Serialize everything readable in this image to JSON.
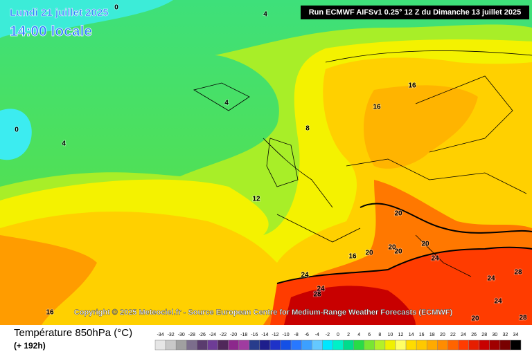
{
  "header": {
    "date": "Lundi 21 juillet 2025",
    "time": "14:00 locale",
    "run": "Run ECMWF AIFSv1 0.25° 12 Z du Dimanche 13 juillet 2025"
  },
  "copyright": "Copyright © 2025 Meteociel.fr - Source European Centre for Medium-Range Weather Forecasts (ECMWF)",
  "footer": {
    "title": "Température 850hPa (°C)",
    "lead": "(+ 192h)"
  },
  "contour_labels": [
    0,
    4,
    4,
    0,
    4,
    8,
    12,
    16,
    16,
    16,
    16,
    20,
    20,
    20,
    20,
    20,
    24,
    24,
    24,
    24,
    24,
    28,
    28,
    28,
    20
  ],
  "legend": {
    "labels": [
      -34,
      -32,
      -30,
      -28,
      -26,
      -24,
      -22,
      -20,
      -18,
      -16,
      -14,
      -12,
      -10,
      -8,
      -6,
      -4,
      -2,
      0,
      2,
      4,
      6,
      8,
      10,
      12,
      14,
      16,
      18,
      20,
      22,
      24,
      26,
      28,
      30,
      32,
      34
    ],
    "colors": [
      "#e6e6e6",
      "#c8c8c8",
      "#a0a0a0",
      "#7c6e8c",
      "#5a3c6e",
      "#6e3c96",
      "#50285a",
      "#8c288c",
      "#a03ca0",
      "#283c8c",
      "#1e1e8c",
      "#1e32c8",
      "#1450e6",
      "#2878ff",
      "#3ca0ff",
      "#64c8ff",
      "#00e6ff",
      "#00f0c8",
      "#00dc8c",
      "#28dc46",
      "#78e632",
      "#b4f028",
      "#f0f000",
      "#ffff64",
      "#ffdc00",
      "#ffc800",
      "#ffaa00",
      "#ff8c00",
      "#ff6400",
      "#ff3c00",
      "#e61e00",
      "#c80000",
      "#a00000",
      "#780000",
      "#000000"
    ]
  }
}
